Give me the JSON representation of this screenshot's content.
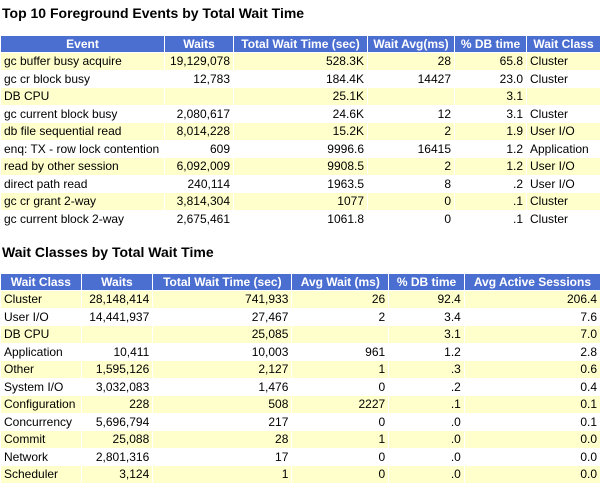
{
  "events": {
    "title": "Top 10 Foreground Events by Total Wait Time",
    "headers": [
      "Event",
      "Waits",
      "Total Wait Time (sec)",
      "Wait Avg(ms)",
      "% DB time",
      "Wait Class"
    ],
    "rows": [
      [
        "gc buffer busy acquire",
        "19,129,078",
        "528.3K",
        "28",
        "65.8",
        "Cluster"
      ],
      [
        "gc cr block busy",
        "12,783",
        "184.4K",
        "14427",
        "23.0",
        "Cluster"
      ],
      [
        "DB CPU",
        "",
        "25.1K",
        "",
        "3.1",
        ""
      ],
      [
        "gc current block busy",
        "2,080,617",
        "24.6K",
        "12",
        "3.1",
        "Cluster"
      ],
      [
        "db file sequential read",
        "8,014,228",
        "15.2K",
        "2",
        "1.9",
        "User I/O"
      ],
      [
        "enq: TX - row lock contention",
        "609",
        "9996.6",
        "16415",
        "1.2",
        "Application"
      ],
      [
        "read by other session",
        "6,092,009",
        "9908.5",
        "2",
        "1.2",
        "User I/O"
      ],
      [
        "direct path read",
        "240,114",
        "1963.5",
        "8",
        ".2",
        "User I/O"
      ],
      [
        "gc cr grant 2-way",
        "3,814,304",
        "1077",
        "0",
        ".1",
        "Cluster"
      ],
      [
        "gc current block 2-way",
        "2,675,461",
        "1061.8",
        "0",
        ".1",
        "Cluster"
      ]
    ]
  },
  "classes": {
    "title": "Wait Classes by Total Wait Time",
    "headers": [
      "Wait Class",
      "Waits",
      "Total Wait Time (sec)",
      "Avg Wait (ms)",
      "% DB time",
      "Avg Active Sessions"
    ],
    "rows": [
      [
        "Cluster",
        "28,148,414",
        "741,933",
        "26",
        "92.4",
        "206.4"
      ],
      [
        "User I/O",
        "14,441,937",
        "27,467",
        "2",
        "3.4",
        "7.6"
      ],
      [
        "DB CPU",
        "",
        "25,085",
        "",
        "3.1",
        "7.0"
      ],
      [
        "Application",
        "10,411",
        "10,003",
        "961",
        "1.2",
        "2.8"
      ],
      [
        "Other",
        "1,595,126",
        "2,127",
        "1",
        ".3",
        "0.6"
      ],
      [
        "System I/O",
        "3,032,083",
        "1,476",
        "0",
        ".2",
        "0.4"
      ],
      [
        "Configuration",
        "228",
        "508",
        "2227",
        ".1",
        "0.1"
      ],
      [
        "Concurrency",
        "5,696,794",
        "217",
        "0",
        ".0",
        "0.1"
      ],
      [
        "Commit",
        "25,088",
        "28",
        "1",
        ".0",
        "0.0"
      ],
      [
        "Network",
        "2,801,316",
        "17",
        "0",
        ".0",
        "0.0"
      ],
      [
        "Scheduler",
        "3,124",
        "1",
        "0",
        ".0",
        "0.0"
      ]
    ]
  }
}
